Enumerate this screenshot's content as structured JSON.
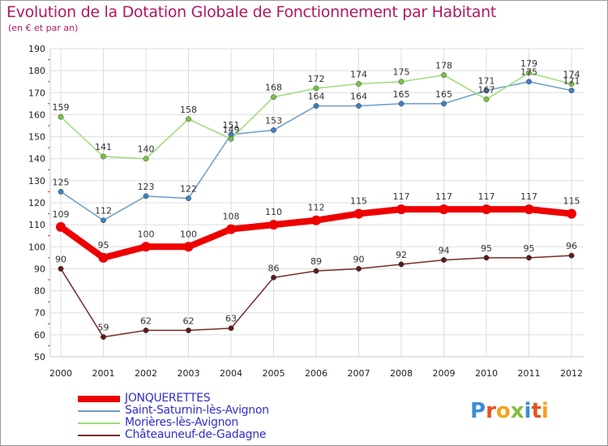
{
  "header": {
    "title": "Evolution de la Dotation Globale de Fonctionnement par Habitant",
    "subtitle": "(en € et par an)"
  },
  "colors": {
    "title": "#b2185f",
    "legend_text": "#2f2fcc",
    "grid": "#dddddd",
    "axis": "#cccccc"
  },
  "logo": {
    "text": "Proxiti",
    "letters": [
      {
        "ch": "P",
        "color": "#3a8fd0"
      },
      {
        "ch": "r",
        "color": "#e8521f"
      },
      {
        "ch": "o",
        "color": "#f6a21e"
      },
      {
        "ch": "x",
        "color": "#84bd3a"
      },
      {
        "ch": "i",
        "color": "#3a8fd0"
      },
      {
        "ch": "t",
        "color": "#e8521f"
      },
      {
        "ch": "i",
        "color": "#f6a21e"
      }
    ]
  },
  "chart_data": {
    "type": "line",
    "title": "Evolution de la Dotation Globale de Fonctionnement par Habitant",
    "subtitle": "(en € et par an)",
    "xlabel": "",
    "ylabel": "",
    "x": [
      "2000",
      "2001",
      "2002",
      "2003",
      "2004",
      "2005",
      "2006",
      "2007",
      "2008",
      "2009",
      "2010",
      "2011",
      "2012"
    ],
    "ylim": [
      50,
      190
    ],
    "yticks": [
      50,
      60,
      70,
      80,
      90,
      100,
      110,
      120,
      130,
      140,
      150,
      160,
      170,
      180,
      190
    ],
    "grid": true,
    "legend_position": "bottom-left",
    "series": [
      {
        "name": "JONQUERETTES",
        "color": "#ee0000",
        "marker": "#ee0000",
        "bold": true,
        "values": [
          109,
          95,
          100,
          100,
          108,
          110,
          112,
          115,
          117,
          117,
          117,
          117,
          115
        ]
      },
      {
        "name": "Saint-Saturnin-lès-Avignon",
        "color": "#6a9cc9",
        "marker": "#3f7fbf",
        "bold": false,
        "values": [
          125,
          112,
          123,
          122,
          151,
          153,
          164,
          164,
          165,
          165,
          171,
          175,
          171
        ]
      },
      {
        "name": "Morières-lès-Avignon",
        "color": "#99dd77",
        "marker": "#7ac143",
        "bold": false,
        "values": [
          159,
          141,
          140,
          158,
          149,
          168,
          172,
          174,
          175,
          178,
          167,
          179,
          174
        ]
      },
      {
        "name": "Châteauneuf-de-Gadagne",
        "color": "#7a2a2a",
        "marker": "#5a1a1a",
        "bold": false,
        "values": [
          90,
          59,
          62,
          62,
          63,
          86,
          89,
          90,
          92,
          94,
          95,
          95,
          96
        ]
      }
    ]
  }
}
